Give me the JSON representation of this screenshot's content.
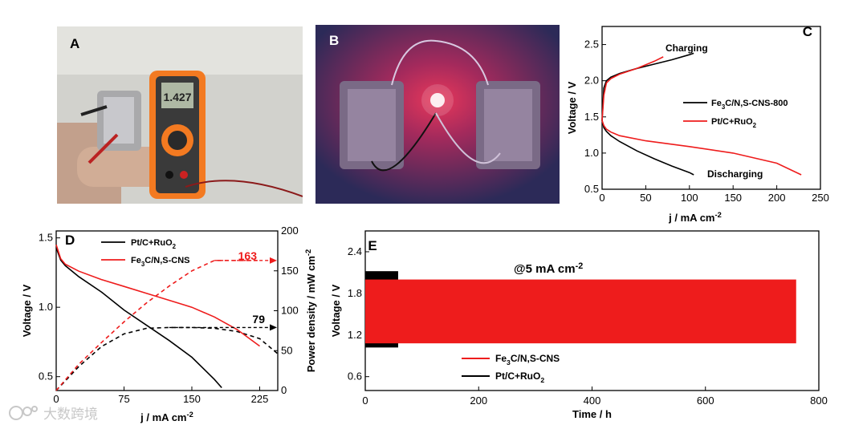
{
  "panels": {
    "a": {
      "letter": "A",
      "display_reading": "1.427"
    },
    "b": {
      "letter": "B"
    }
  },
  "watermark": {
    "text": "大数跨境"
  },
  "chart_data": [
    {
      "id": "C",
      "type": "line",
      "panel_letter": "C",
      "xlabel": "j / mA cm-2",
      "ylabel": "Voltage / V",
      "xlim": [
        0,
        250
      ],
      "ylim": [
        0.5,
        2.75
      ],
      "xticks": [
        "0",
        "50",
        "100",
        "150",
        "200",
        "250"
      ],
      "yticks": [
        "0.5",
        "1.0",
        "1.5",
        "2.0",
        "2.5"
      ],
      "legend_position": "middle-right",
      "annotations": [
        "Charging",
        "Discharging"
      ],
      "series": [
        {
          "name": "Fe3C/N,S-CNS-800",
          "color": "#000000",
          "role": "charge",
          "x": [
            0,
            2,
            5,
            10,
            20,
            40,
            60,
            80,
            100,
            105
          ],
          "y": [
            1.45,
            1.9,
            2.0,
            2.05,
            2.1,
            2.17,
            2.23,
            2.29,
            2.36,
            2.38
          ]
        },
        {
          "name": "Fe3C/N,S-CNS-800",
          "color": "#000000",
          "role": "discharge",
          "x": [
            0,
            2,
            5,
            10,
            20,
            40,
            60,
            80,
            100,
            105
          ],
          "y": [
            1.45,
            1.35,
            1.3,
            1.24,
            1.16,
            1.03,
            0.92,
            0.82,
            0.73,
            0.7
          ]
        },
        {
          "name": "Pt/C+RuO2",
          "color": "#ee1c1c",
          "role": "charge",
          "x": [
            0,
            2,
            5,
            10,
            20,
            40,
            60,
            70
          ],
          "y": [
            1.45,
            1.8,
            1.97,
            2.03,
            2.09,
            2.17,
            2.27,
            2.33
          ]
        },
        {
          "name": "Pt/C+RuO2",
          "color": "#ee1c1c",
          "role": "discharge",
          "x": [
            0,
            2,
            5,
            10,
            20,
            50,
            100,
            150,
            200,
            228
          ],
          "y": [
            1.45,
            1.38,
            1.33,
            1.29,
            1.24,
            1.17,
            1.09,
            1.0,
            0.86,
            0.7
          ]
        }
      ]
    },
    {
      "id": "D",
      "type": "line",
      "panel_letter": "D",
      "xlabel": "j / mA cm-2",
      "ylabel": "Voltage / V",
      "y2label": "Power density / mW cm-2",
      "xlim": [
        0,
        245
      ],
      "ylim": [
        0.4,
        1.55
      ],
      "y2lim": [
        0,
        200
      ],
      "xticks": [
        "0",
        "75",
        "150",
        "225"
      ],
      "yticks": [
        "0.5",
        "1.0",
        "1.5"
      ],
      "y2ticks": [
        "0",
        "50",
        "100",
        "150",
        "200"
      ],
      "legend_position": "top-left",
      "data_labels": [
        "163",
        "79"
      ],
      "series": [
        {
          "name": "Pt/C+RuO2",
          "color": "#000000",
          "kind": "voltage",
          "x": [
            0,
            5,
            10,
            25,
            50,
            75,
            100,
            125,
            150,
            175,
            183
          ],
          "y": [
            1.43,
            1.34,
            1.3,
            1.22,
            1.11,
            0.98,
            0.87,
            0.76,
            0.64,
            0.48,
            0.42
          ]
        },
        {
          "name": "Pt/C+RuO2",
          "color": "#000000",
          "kind": "power",
          "x": [
            0,
            25,
            50,
            75,
            100,
            125,
            150,
            175,
            200,
            225,
            245
          ],
          "y": [
            0,
            30,
            55,
            71,
            78,
            79,
            79,
            78,
            74,
            65,
            46
          ]
        },
        {
          "name": "Fe3C/N,S-CNS",
          "color": "#ee1c1c",
          "kind": "voltage",
          "x": [
            0,
            5,
            10,
            25,
            50,
            75,
            100,
            125,
            150,
            175,
            200,
            225
          ],
          "y": [
            1.45,
            1.35,
            1.31,
            1.26,
            1.2,
            1.15,
            1.1,
            1.05,
            1.0,
            0.93,
            0.84,
            0.72
          ]
        },
        {
          "name": "Fe3C/N,S-CNS",
          "color": "#ee1c1c",
          "kind": "power",
          "x": [
            0,
            25,
            50,
            75,
            100,
            125,
            150,
            175,
            200,
            225
          ],
          "y": [
            0,
            33,
            60,
            86,
            110,
            131,
            150,
            163,
            163,
            163
          ]
        }
      ]
    },
    {
      "id": "E",
      "type": "area",
      "panel_letter": "E",
      "xlabel": "Time / h",
      "ylabel": "Voltage / V",
      "xlim": [
        0,
        800
      ],
      "ylim": [
        0.4,
        2.7
      ],
      "xticks": [
        "0",
        "200",
        "400",
        "600",
        "800"
      ],
      "yticks": [
        "0.6",
        "1.2",
        "1.8",
        "2.4"
      ],
      "legend_position": "bottom-center",
      "annotation": "@5 mA cm-2",
      "series": [
        {
          "name": "Fe3C/N,S-CNS",
          "color": "#ee1c1c",
          "x_range": [
            0,
            760
          ],
          "charge_v": 2.0,
          "discharge_v": 1.08
        },
        {
          "name": "Pt/C+RuO2",
          "color": "#000000",
          "x_range": [
            0,
            58
          ],
          "charge_v": 2.12,
          "discharge_v": 1.02
        }
      ]
    }
  ]
}
